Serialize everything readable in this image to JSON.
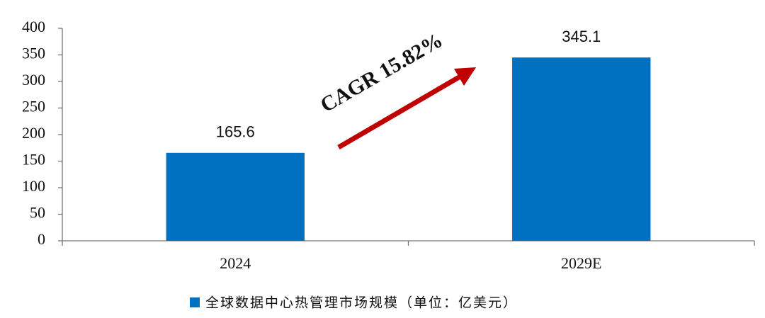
{
  "chart_data": {
    "type": "bar",
    "categories": [
      "2024",
      "2029E"
    ],
    "values": [
      165.6,
      345.1
    ],
    "color": "#0070c0",
    "ylim": [
      0,
      400
    ],
    "yticks": [
      0,
      50,
      100,
      150,
      200,
      250,
      300,
      350,
      400
    ],
    "legend": "全球数据中心热管理市场规模（单位：亿美元）",
    "annotation": "CAGR 15.82%",
    "data_labels": true
  }
}
